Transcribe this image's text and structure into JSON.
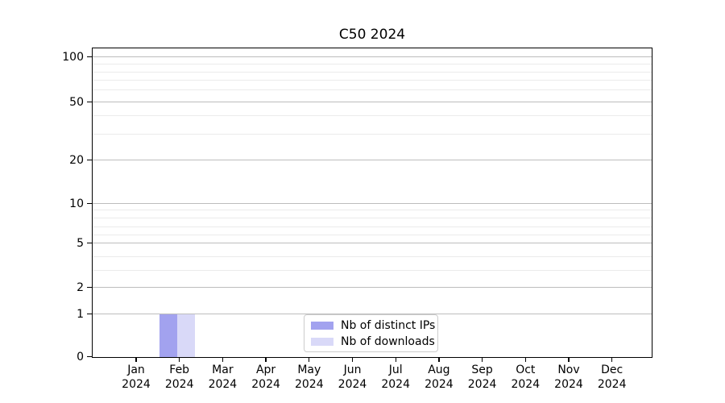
{
  "title": "C50 2024",
  "chart_data": {
    "type": "bar",
    "title": "C50 2024",
    "categories": [
      "Jan 2024",
      "Feb 2024",
      "Mar 2024",
      "Apr 2024",
      "May 2024",
      "Jun 2024",
      "Jul 2024",
      "Aug 2024",
      "Sep 2024",
      "Oct 2024",
      "Nov 2024",
      "Dec 2024"
    ],
    "series": [
      {
        "name": "Nb of distinct IPs",
        "color": "#a2a2ef",
        "values": [
          0,
          1,
          0,
          0,
          0,
          0,
          0,
          0,
          0,
          0,
          0,
          0
        ]
      },
      {
        "name": "Nb of downloads",
        "color": "#d9d9f8",
        "values": [
          0,
          1,
          0,
          0,
          0,
          0,
          0,
          0,
          0,
          0,
          0,
          0
        ]
      }
    ],
    "xlabel": "",
    "ylabel": "",
    "y_axis": {
      "scale": "symlog",
      "ticks": [
        0,
        1,
        2,
        5,
        10,
        20,
        50,
        100
      ],
      "minor_ticks": [
        3,
        4,
        6,
        7,
        8,
        9,
        30,
        40,
        60,
        70,
        80,
        90
      ],
      "ylim": [
        0,
        113
      ]
    },
    "grid": {
      "axis": "y",
      "major": true,
      "minor": true
    },
    "legend_position": "lower center, inside axes"
  },
  "legend": {
    "items": [
      {
        "label": "Nb of distinct IPs",
        "color": "#a2a2ef"
      },
      {
        "label": "Nb of downloads",
        "color": "#d9d9f8"
      }
    ]
  },
  "colors": {
    "background": "#ffffff",
    "spine": "#000000",
    "major_gridline": "#bdbdbd",
    "minor_gridline": "#ebebeb",
    "legend_border": "#cccccc",
    "bar_distinct_ips": "#a2a2ef",
    "bar_downloads": "#d9d9f8"
  }
}
